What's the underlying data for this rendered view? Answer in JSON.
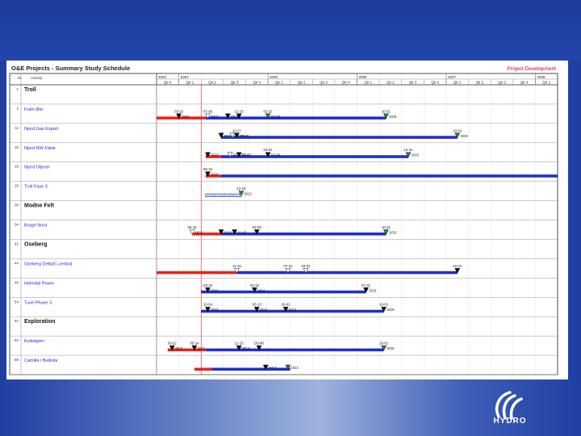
{
  "slide": {
    "title": "O&E Projects - Summary Study Schedule",
    "corner_label": "Project Development",
    "col_id": "ID",
    "col_activity": "Activity"
  },
  "logo": {
    "text": "HYDRO"
  },
  "colors": {
    "background": "#1f3fa3",
    "phase_red": "#e8231c",
    "phase_blue": "#1f30c8",
    "milestone_green": "#1f8f3a",
    "today_line": "#d02020"
  },
  "chart_data": {
    "type": "gantt",
    "years": [
      "2003",
      "2004",
      "2005",
      "2006",
      "2007",
      "2008"
    ],
    "quarters": [
      "Qtr 4",
      "Qtr 1",
      "Qtr 2",
      "Qtr 3",
      "Qtr 4",
      "Qtr 1",
      "Qtr 2",
      "Qtr 3",
      "Qtr 4",
      "Qtr 1",
      "Qtr 2",
      "Qtr 3",
      "Qtr 4",
      "Qtr 1",
      "Qtr 2",
      "Qtr 3",
      "Qtr 4",
      "Qtr 1"
    ],
    "today_quarter_index": 2.0,
    "rows": [
      {
        "id": "1",
        "name": "Troll",
        "bold": true,
        "bars": [],
        "milestones": []
      },
      {
        "id": "2",
        "name": "Fram Øst",
        "bold": false,
        "bars": [
          {
            "start": 0.0,
            "end": 2.2,
            "color": "red"
          },
          {
            "start": 2.2,
            "end": 10.3,
            "color": "blue"
          }
        ],
        "milestones": [
          {
            "pos": 1.0,
            "above": "03-15",
            "below": "DG0",
            "color": "black"
          },
          {
            "pos": 2.3,
            "above": "07-06",
            "below": "DG3",
            "color": "white"
          },
          {
            "pos": 3.2,
            "above": "",
            "below": "DG4",
            "color": "black"
          },
          {
            "pos": 3.7,
            "above": "12-15",
            "below": "",
            "color": "black"
          },
          {
            "pos": 5.0,
            "above": "02-15",
            "below": "DG4b",
            "color": "green"
          },
          {
            "pos": 10.3,
            "above": "10-31",
            "below": "DG5",
            "color": "green"
          }
        ]
      },
      {
        "id": "11",
        "name": "Njord Gas Export",
        "bold": false,
        "bars": [
          {
            "start": 2.9,
            "end": 13.5,
            "color": "blue"
          }
        ],
        "milestones": [
          {
            "pos": 2.9,
            "above": "",
            "below": "DG4",
            "color": "black"
          },
          {
            "pos": 3.6,
            "above": "10-27",
            "below": "DG4b",
            "color": "black"
          },
          {
            "pos": 3.4,
            "above": "",
            "below": "10-01",
            "color": "white"
          },
          {
            "pos": 13.5,
            "above": "10-01",
            "below": "DG5",
            "color": "green"
          }
        ]
      },
      {
        "id": "15",
        "name": "Njord NW Flank",
        "bold": false,
        "bars": [
          {
            "start": 2.2,
            "end": 2.9,
            "color": "red"
          },
          {
            "start": 2.9,
            "end": 11.3,
            "color": "blue"
          }
        ],
        "milestones": [
          {
            "pos": 2.3,
            "above": "",
            "below": "DG3",
            "color": "black"
          },
          {
            "pos": 3.3,
            "above": "",
            "below": "DG3 DG4",
            "color": "white"
          },
          {
            "pos": 3.7,
            "above": "",
            "below": "05-15",
            "color": "black"
          },
          {
            "pos": 5.0,
            "above": "04-01",
            "below": "DG4b",
            "color": "black"
          },
          {
            "pos": 11.3,
            "above": "12-31",
            "below": "DG5",
            "color": "green"
          }
        ]
      },
      {
        "id": "19",
        "name": "Njord Oljerør",
        "bold": false,
        "bars": [
          {
            "start": 2.2,
            "end": 2.9,
            "color": "red"
          },
          {
            "start": 2.9,
            "end": 18.0,
            "color": "blue"
          }
        ],
        "milestones": [
          {
            "pos": 2.3,
            "above": "05-15",
            "below": "DG3",
            "color": "black"
          }
        ]
      },
      {
        "id": "20",
        "name": "Troll Fase 3",
        "bold": false,
        "bars": [
          {
            "start": 2.2,
            "end": 3.8,
            "color": "hatch"
          }
        ],
        "milestones": [
          {
            "pos": 3.8,
            "above": "12-15",
            "below": "DG2",
            "color": "green"
          }
        ]
      },
      {
        "id": "30",
        "name": "Modne Felt",
        "bold": true,
        "bars": [],
        "milestones": []
      },
      {
        "id": "34",
        "name": "Brage Nord",
        "bold": false,
        "bars": [
          {
            "start": 1.6,
            "end": 2.9,
            "color": "red"
          },
          {
            "start": 2.9,
            "end": 10.3,
            "color": "blue"
          }
        ],
        "milestones": [
          {
            "pos": 1.6,
            "above": "06-15",
            "below": "DG3",
            "color": "white"
          },
          {
            "pos": 2.9,
            "above": "",
            "below": "DG3",
            "color": "black"
          },
          {
            "pos": 3.5,
            "above": "",
            "below": "11-15",
            "color": "black"
          },
          {
            "pos": 4.5,
            "above": "02-03",
            "below": "",
            "color": "black"
          },
          {
            "pos": 10.3,
            "above": "10-31",
            "below": "DG5",
            "color": "green"
          }
        ]
      },
      {
        "id": "42",
        "name": "Oseberg",
        "bold": true,
        "bars": [],
        "milestones": []
      },
      {
        "id": "44",
        "name": "Oseberg Delta/C-central",
        "bold": false,
        "bars": [
          {
            "start": 0.0,
            "end": 3.6,
            "color": "red"
          },
          {
            "start": 3.6,
            "end": 13.5,
            "color": "blue"
          }
        ],
        "milestones": [
          {
            "pos": 3.6,
            "above": "11-15",
            "below": "",
            "color": "white"
          },
          {
            "pos": 5.9,
            "above": "07-31",
            "below": "",
            "color": "white"
          },
          {
            "pos": 6.7,
            "above": "03-01",
            "below": "",
            "color": "white"
          },
          {
            "pos": 13.5,
            "above": "10-01",
            "below": "",
            "color": "black"
          }
        ]
      },
      {
        "id": "49",
        "name": "Heimdal Power",
        "bold": false,
        "bars": [
          {
            "start": 2.0,
            "end": 9.4,
            "color": "blue"
          }
        ],
        "milestones": [
          {
            "pos": 2.3,
            "above": "03-15",
            "below": "DG3",
            "color": "black"
          },
          {
            "pos": 4.4,
            "above": "02-15",
            "below": "DG4",
            "color": "black"
          },
          {
            "pos": 9.4,
            "above": "07-31",
            "below": "DG5",
            "color": "black"
          }
        ]
      },
      {
        "id": "54",
        "name": "Tune Phase 3",
        "bold": false,
        "bars": [
          {
            "start": 2.0,
            "end": 10.2,
            "color": "blue"
          }
        ],
        "milestones": [
          {
            "pos": 2.3,
            "above": "10-04",
            "below": "DG3",
            "color": "black"
          },
          {
            "pos": 4.5,
            "above": "03-13",
            "below": "DG3",
            "color": "black"
          },
          {
            "pos": 5.8,
            "above": "26-01",
            "below": "DG4",
            "color": "black"
          },
          {
            "pos": 10.2,
            "above": "10-01",
            "below": "DG5",
            "color": "black"
          }
        ]
      },
      {
        "id": "57",
        "name": "Exploration",
        "bold": true,
        "bars": [],
        "milestones": []
      },
      {
        "id": "64",
        "name": "Kvitebjørn",
        "bold": false,
        "bars": [
          {
            "start": 0.5,
            "end": 2.2,
            "color": "red"
          },
          {
            "start": 2.2,
            "end": 10.2,
            "color": "blue"
          }
        ],
        "milestones": [
          {
            "pos": 0.7,
            "above": "03-22",
            "below": "DG3",
            "color": "black"
          },
          {
            "pos": 1.7,
            "above": "05-14",
            "below": "DG3",
            "color": "black"
          },
          {
            "pos": 3.7,
            "above": "12-15",
            "below": "DG4",
            "color": "black"
          },
          {
            "pos": 4.6,
            "above": "DG4B",
            "below": "",
            "color": "black"
          },
          {
            "pos": 10.2,
            "above": "10-01",
            "below": "DG5",
            "color": "green"
          }
        ]
      },
      {
        "id": "68",
        "name": "Camilla / Belinda",
        "bold": false,
        "bars": [
          {
            "start": 1.7,
            "end": 2.5,
            "color": "red"
          },
          {
            "start": 2.5,
            "end": 6.0,
            "color": "blue"
          }
        ],
        "milestones": [
          {
            "pos": 4.9,
            "above": "",
            "below": "DG3",
            "color": "black"
          },
          {
            "pos": 5.9,
            "above": "",
            "below": "DG4",
            "color": "green"
          }
        ]
      }
    ]
  }
}
